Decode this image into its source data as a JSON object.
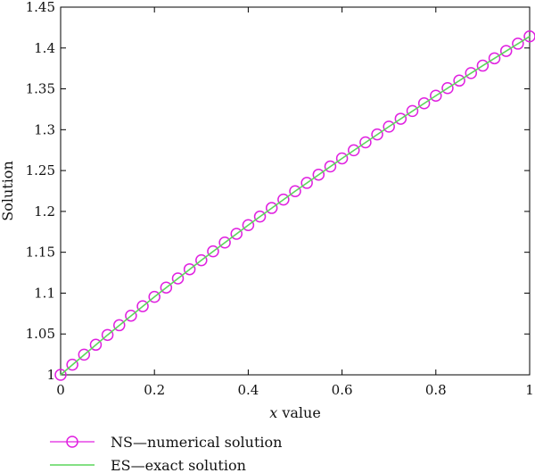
{
  "chart_data": {
    "type": "line",
    "xlabel_var": "x",
    "xlabel_rest": " value",
    "ylabel": "Solution",
    "xlim": [
      0,
      1
    ],
    "ylim": [
      1,
      1.45
    ],
    "xticks": [
      0,
      0.2,
      0.4,
      0.6,
      0.8,
      1
    ],
    "xtick_labels": [
      "0",
      "0.2",
      "0.4",
      "0.6",
      "0.8",
      "1"
    ],
    "yticks": [
      1,
      1.05,
      1.1,
      1.15,
      1.2,
      1.25,
      1.3,
      1.35,
      1.4,
      1.45
    ],
    "ytick_labels": [
      "1",
      "1.05",
      "1.1",
      "1.15",
      "1.2",
      "1.25",
      "1.3",
      "1.35",
      "1.4",
      "1.45"
    ],
    "grid": false,
    "legend_position": "bottom-left, below plot",
    "series": [
      {
        "name": "NS—numerical solution",
        "style": "markers",
        "marker": "circle",
        "color": "#e020e0",
        "x": [
          0,
          0.025,
          0.05,
          0.075,
          0.1,
          0.125,
          0.15,
          0.175,
          0.2,
          0.225,
          0.25,
          0.275,
          0.3,
          0.325,
          0.35,
          0.375,
          0.4,
          0.425,
          0.45,
          0.475,
          0.5,
          0.525,
          0.55,
          0.575,
          0.6,
          0.625,
          0.65,
          0.675,
          0.7,
          0.725,
          0.75,
          0.775,
          0.8,
          0.825,
          0.85,
          0.875,
          0.9,
          0.925,
          0.95,
          0.975,
          1
        ],
        "y": [
          1.0,
          1.0124,
          1.0247,
          1.0368,
          1.0488,
          1.0607,
          1.0724,
          1.084,
          1.0954,
          1.1068,
          1.118,
          1.1292,
          1.1402,
          1.1511,
          1.1619,
          1.1726,
          1.1832,
          1.1937,
          1.2042,
          1.2145,
          1.2247,
          1.2349,
          1.245,
          1.255,
          1.2649,
          1.2748,
          1.2845,
          1.2942,
          1.3038,
          1.3134,
          1.3229,
          1.3323,
          1.3416,
          1.3509,
          1.3601,
          1.3693,
          1.3784,
          1.3874,
          1.3964,
          1.4053,
          1.4142
        ]
      },
      {
        "name": "ES—exact solution",
        "style": "line",
        "color": "#5cd65c",
        "x": [
          0,
          0.1,
          0.2,
          0.3,
          0.4,
          0.5,
          0.6,
          0.7,
          0.8,
          0.9,
          1
        ],
        "y": [
          1.0,
          1.0488,
          1.0954,
          1.1402,
          1.1832,
          1.2247,
          1.2649,
          1.3038,
          1.3416,
          1.3784,
          1.4142
        ]
      }
    ]
  }
}
